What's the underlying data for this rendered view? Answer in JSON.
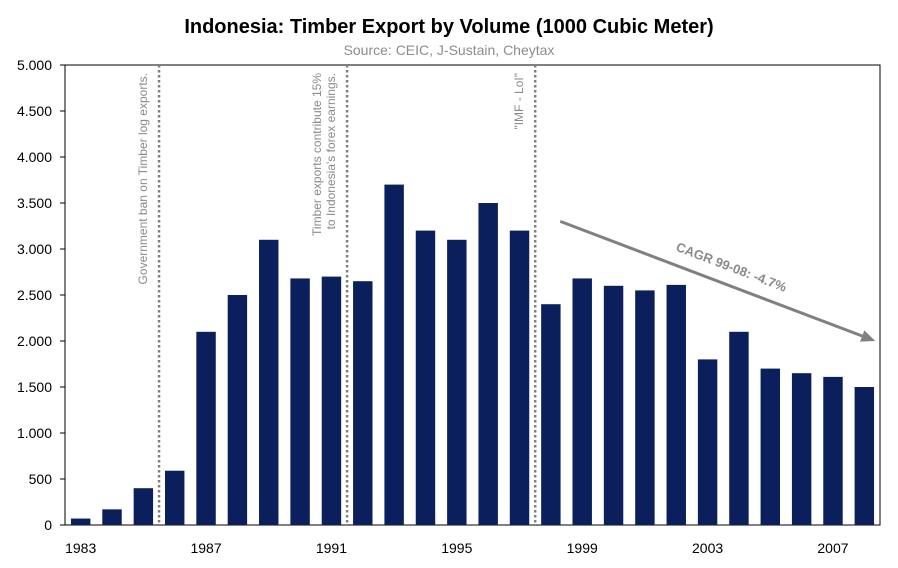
{
  "chart_data": {
    "type": "bar",
    "title": "Indonesia: Timber Export by Volume (1000 Cubic Meter)",
    "subtitle": "Source: CEIC, J-Sustain, Cheytax",
    "xlabel": "",
    "ylabel": "",
    "ylim": [
      0,
      5000
    ],
    "y_ticks": [
      0,
      500,
      1000,
      1500,
      2000,
      2500,
      3000,
      3500,
      4000,
      4500,
      5000
    ],
    "y_tick_labels": [
      "0",
      "500",
      "1.000",
      "1.500",
      "2.000",
      "2.500",
      "3.000",
      "3.500",
      "4.000",
      "4.500",
      "5.000"
    ],
    "x_tick_labels": [
      "1983",
      "1987",
      "1991",
      "1995",
      "1999",
      "2003",
      "2007"
    ],
    "categories": [
      1983,
      1984,
      1985,
      1986,
      1987,
      1988,
      1989,
      1990,
      1991,
      1992,
      1993,
      1994,
      1995,
      1996,
      1997,
      1998,
      1999,
      2000,
      2001,
      2002,
      2003,
      2004,
      2005,
      2006,
      2007,
      2008
    ],
    "values": [
      70,
      170,
      400,
      590,
      2100,
      2500,
      3100,
      2680,
      2700,
      2650,
      3700,
      3200,
      3100,
      3500,
      3200,
      2400,
      2680,
      2600,
      2550,
      2610,
      1800,
      2100,
      1700,
      1650,
      1610,
      1500
    ],
    "bar_color": "#0b1f5c",
    "annotations": [
      {
        "after": 1985,
        "lines": [
          "Government ban on Timber log exports."
        ]
      },
      {
        "after": 1991,
        "lines": [
          "Timber exports contribute 15%",
          "to Indonesia's forex earnings."
        ]
      },
      {
        "after": 1997,
        "lines": [
          "\"IMF - LoI\""
        ]
      }
    ],
    "trend": {
      "label": "CAGR 99-08: -4.7%",
      "from": 1998,
      "to": 2008,
      "y_start": 3300,
      "y_end": 2000,
      "color": "#808080"
    },
    "grid": false,
    "legend": "none"
  }
}
